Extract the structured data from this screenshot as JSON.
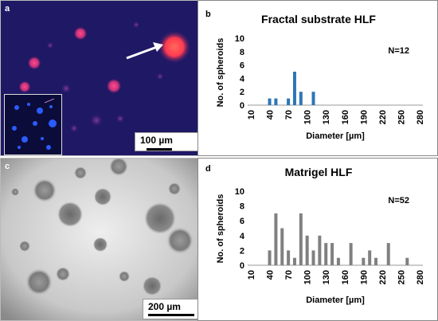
{
  "panel_letters": {
    "a": "a",
    "b": "b",
    "c": "c",
    "d": "d"
  },
  "scale_bars": {
    "a": "100 µm",
    "c": "200 µm"
  },
  "chart_data": [
    {
      "type": "bar",
      "title": "Fractal substrate HLF",
      "xlabel": "Diameter [µm]",
      "ylabel": "No. of spheroids",
      "annotation": "N=12",
      "ylim": [
        0,
        10
      ],
      "y_ticks": [
        "0",
        "2",
        "4",
        "6",
        "8",
        "10"
      ],
      "x_tick_labels": [
        "10",
        "40",
        "70",
        "100",
        "130",
        "160",
        "190",
        "220",
        "250",
        "280"
      ],
      "x": [
        40,
        50,
        70,
        80,
        90,
        110
      ],
      "values": [
        1,
        1,
        1,
        5,
        2,
        2
      ],
      "color": "#2e75b6"
    },
    {
      "type": "bar",
      "title": "Matrigel HLF",
      "xlabel": "Diameter [µm]",
      "ylabel": "No. of spheroids",
      "annotation": "N=52",
      "ylim": [
        0,
        10
      ],
      "y_ticks": [
        "0",
        "2",
        "4",
        "6",
        "8",
        "10"
      ],
      "x_tick_labels": [
        "10",
        "40",
        "70",
        "100",
        "130",
        "160",
        "190",
        "220",
        "250",
        "280"
      ],
      "x": [
        40,
        50,
        60,
        70,
        80,
        90,
        100,
        110,
        120,
        130,
        140,
        150,
        170,
        190,
        200,
        210,
        230,
        260
      ],
      "values": [
        2,
        7,
        5,
        2,
        1,
        7,
        4,
        2,
        4,
        3,
        3,
        1,
        3,
        1,
        2,
        1,
        3,
        1
      ],
      "color": "#808080"
    }
  ]
}
